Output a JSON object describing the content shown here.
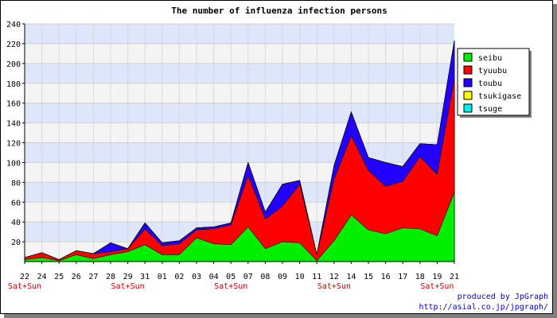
{
  "chart_data": {
    "type": "area",
    "stacked": true,
    "title": "The number of influenza infection persons",
    "categories": [
      "22",
      "24",
      "25",
      "26",
      "27",
      "28",
      "29",
      "31",
      "01",
      "02",
      "03",
      "04",
      "05",
      "07",
      "08",
      "09",
      "10",
      "11",
      "12",
      "14",
      "15",
      "16",
      "17",
      "18",
      "19",
      "21"
    ],
    "weekend_markers": [
      {
        "category_index": 0,
        "label": "Sat+Sun"
      },
      {
        "category_index": 6,
        "label": "Sat+Sun"
      },
      {
        "category_index": 12,
        "label": "Sat+Sun"
      },
      {
        "category_index": 18,
        "label": "Sat+Sun"
      },
      {
        "category_index": 24,
        "label": "Sat+Sun"
      }
    ],
    "ylim": [
      0,
      240
    ],
    "yticks": [
      20,
      40,
      60,
      80,
      100,
      120,
      140,
      160,
      180,
      200,
      220,
      240
    ],
    "grid": true,
    "grid_colors": [
      "#dde6fb",
      "#f4f4f4"
    ],
    "legend_position": "right",
    "series": [
      {
        "name": "seibu",
        "color": "#00ee00",
        "values": [
          2,
          4,
          1,
          7,
          3,
          7,
          10,
          17,
          7,
          7,
          24,
          18,
          17,
          35,
          13,
          20,
          19,
          1,
          21,
          47,
          32,
          28,
          34,
          33,
          26,
          70
        ]
      },
      {
        "name": "tyuubu",
        "color": "#ff0000",
        "values": [
          2,
          5,
          1,
          4,
          5,
          3,
          3,
          16,
          9,
          11,
          8,
          15,
          20,
          52,
          30,
          36,
          59,
          6,
          62,
          80,
          60,
          48,
          47,
          73,
          62,
          115
        ]
      },
      {
        "name": "toubu",
        "color": "#2200ff",
        "values": [
          0,
          0,
          0,
          0,
          0,
          9,
          0,
          6,
          3,
          3,
          2,
          2,
          2,
          13,
          7,
          22,
          4,
          0,
          14,
          24,
          13,
          24,
          15,
          13,
          30,
          38
        ]
      },
      {
        "name": "tsukigase",
        "color": "#ffff00",
        "values": [
          0,
          0,
          0,
          0,
          0,
          0,
          0,
          0,
          0,
          0,
          0,
          0,
          0,
          0,
          0,
          0,
          0,
          0,
          0,
          0,
          0,
          0,
          0,
          0,
          0,
          0
        ]
      },
      {
        "name": "tsuge",
        "color": "#00eeee",
        "values": [
          0,
          0,
          0,
          0,
          0,
          0,
          0,
          0,
          0,
          0,
          0,
          0,
          0,
          0,
          0,
          0,
          0,
          0,
          0,
          0,
          0,
          0,
          0,
          0,
          0,
          0
        ]
      }
    ]
  },
  "footer": {
    "line1": "produced by JpGraph",
    "line2": "http://asial.co.jp/jpgraph/"
  }
}
